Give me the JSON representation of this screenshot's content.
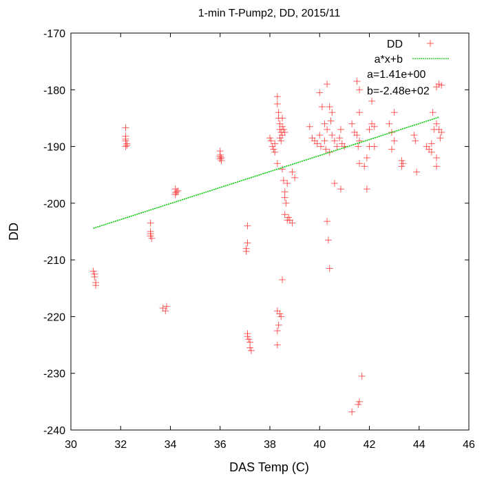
{
  "chart_data": {
    "type": "scatter",
    "title": "1-min T-Pump2, DD, 2015/11",
    "xlabel": "DAS Temp (C)",
    "ylabel": "DD",
    "xlim": [
      30,
      46
    ],
    "ylim": [
      -240,
      -170
    ],
    "xticks": [
      "30",
      "32",
      "34",
      "36",
      "38",
      "40",
      "42",
      "44",
      "46"
    ],
    "yticks": [
      "-170",
      "-180",
      "-190",
      "-200",
      "-210",
      "-220",
      "-230",
      "-240"
    ],
    "grid": false,
    "legend_position": "top-right",
    "colors": {
      "points": "#ff3333",
      "fit": "#00cc00"
    },
    "legend": {
      "series_label": "DD",
      "fit_label": "a*x+b",
      "a_text": "a=1.41e+00",
      "b_text": "b=-2.48e+02"
    },
    "fit": {
      "a": 1.41,
      "b": -248.0,
      "x_range": [
        30.9,
        44.8
      ]
    },
    "series": [
      {
        "name": "DD",
        "marker": "+",
        "points": [
          [
            30.9,
            -212
          ],
          [
            30.95,
            -213
          ],
          [
            31.0,
            -214
          ],
          [
            31.0,
            -214.5
          ],
          [
            30.95,
            -212.5
          ],
          [
            32.2,
            -186.7
          ],
          [
            32.2,
            -188.2
          ],
          [
            32.2,
            -189
          ],
          [
            32.25,
            -189.5
          ],
          [
            32.2,
            -190
          ],
          [
            32.2,
            -188.7
          ],
          [
            32.25,
            -189.8
          ],
          [
            33.2,
            -203.5
          ],
          [
            33.2,
            -205
          ],
          [
            33.2,
            -205.8
          ],
          [
            33.25,
            -206.2
          ],
          [
            33.2,
            -205.4
          ],
          [
            33.7,
            -218.5
          ],
          [
            33.8,
            -219
          ],
          [
            33.85,
            -218.2
          ],
          [
            34.2,
            -197.5
          ],
          [
            34.25,
            -198
          ],
          [
            34.2,
            -198.5
          ],
          [
            34.3,
            -197.8
          ],
          [
            34.2,
            -198.2
          ],
          [
            36.0,
            -190.8
          ],
          [
            36.0,
            -191.8
          ],
          [
            36.0,
            -192.2
          ],
          [
            36.05,
            -192.5
          ],
          [
            36.0,
            -191.5
          ],
          [
            36.05,
            -192
          ],
          [
            37.1,
            -204
          ],
          [
            37.1,
            -207
          ],
          [
            37.05,
            -208
          ],
          [
            37.05,
            -208.5
          ],
          [
            37.1,
            -223
          ],
          [
            37.15,
            -224
          ],
          [
            37.2,
            -224.5
          ],
          [
            37.2,
            -225.5
          ],
          [
            37.25,
            -226
          ],
          [
            37.1,
            -223.5
          ],
          [
            38.0,
            -188.5
          ],
          [
            38.05,
            -189
          ],
          [
            38.1,
            -190
          ],
          [
            38.15,
            -190.5
          ],
          [
            38.2,
            -191
          ],
          [
            38.3,
            -193
          ],
          [
            38.2,
            -189.5
          ],
          [
            38.3,
            -181.2
          ],
          [
            38.3,
            -182.5
          ],
          [
            38.35,
            -184
          ],
          [
            38.35,
            -185
          ],
          [
            38.4,
            -186
          ],
          [
            38.4,
            -187
          ],
          [
            38.45,
            -187.5
          ],
          [
            38.4,
            -188.5
          ],
          [
            38.5,
            -185
          ],
          [
            38.5,
            -186.5
          ],
          [
            38.55,
            -187
          ],
          [
            38.5,
            -188
          ],
          [
            38.6,
            -187.5
          ],
          [
            38.45,
            -189
          ],
          [
            38.3,
            -219
          ],
          [
            38.4,
            -219.5
          ],
          [
            38.45,
            -220
          ],
          [
            38.35,
            -221.5
          ],
          [
            38.3,
            -222.5
          ],
          [
            38.3,
            -225
          ],
          [
            38.5,
            -213.5
          ],
          [
            38.5,
            -194
          ],
          [
            38.55,
            -196
          ],
          [
            38.6,
            -198
          ],
          [
            38.6,
            -199
          ],
          [
            38.65,
            -200
          ],
          [
            38.7,
            -196.5
          ],
          [
            38.6,
            -202
          ],
          [
            38.7,
            -203
          ],
          [
            38.8,
            -203
          ],
          [
            38.9,
            -203.5
          ],
          [
            38.75,
            -202.5
          ],
          [
            38.9,
            -194.5
          ],
          [
            39.0,
            -195.5
          ],
          [
            39.6,
            -186.5
          ],
          [
            39.7,
            -188.5
          ],
          [
            39.8,
            -189
          ],
          [
            39.9,
            -189.5
          ],
          [
            40.0,
            -188
          ],
          [
            40.05,
            -190
          ],
          [
            40.0,
            -180.5
          ],
          [
            40.1,
            -183
          ],
          [
            40.2,
            -186
          ],
          [
            40.3,
            -187
          ],
          [
            40.2,
            -189
          ],
          [
            40.25,
            -190.5
          ],
          [
            40.3,
            -179
          ],
          [
            40.4,
            -183
          ],
          [
            40.5,
            -184
          ],
          [
            40.45,
            -185.5
          ],
          [
            40.5,
            -188
          ],
          [
            40.4,
            -191
          ],
          [
            40.3,
            -203.2
          ],
          [
            40.35,
            -206.5
          ],
          [
            40.4,
            -211.5
          ],
          [
            40.6,
            -189
          ],
          [
            40.7,
            -190
          ],
          [
            40.8,
            -188.5
          ],
          [
            40.9,
            -189.5
          ],
          [
            41.0,
            -190
          ],
          [
            40.85,
            -187
          ],
          [
            40.6,
            -196.5
          ],
          [
            40.85,
            -197.5
          ],
          [
            41.3,
            -186
          ],
          [
            41.4,
            -187.5
          ],
          [
            41.5,
            -188
          ],
          [
            41.6,
            -189
          ],
          [
            41.55,
            -190
          ],
          [
            41.5,
            -178.5
          ],
          [
            41.6,
            -180
          ],
          [
            41.6,
            -184
          ],
          [
            41.6,
            -193
          ],
          [
            41.8,
            -193.5
          ],
          [
            41.9,
            -197.5
          ],
          [
            41.7,
            -230.5
          ],
          [
            41.6,
            -235
          ],
          [
            41.55,
            -235.5
          ],
          [
            41.3,
            -236.8
          ],
          [
            42.0,
            -187
          ],
          [
            42.1,
            -186
          ],
          [
            42.2,
            -186.5
          ],
          [
            42.1,
            -182
          ],
          [
            42.0,
            -190
          ],
          [
            41.9,
            -192
          ],
          [
            42.2,
            -190
          ],
          [
            42.8,
            -186
          ],
          [
            42.9,
            -187.5
          ],
          [
            43.0,
            -189
          ],
          [
            43.0,
            -184
          ],
          [
            42.9,
            -190.5
          ],
          [
            43.3,
            -192.5
          ],
          [
            43.35,
            -193
          ],
          [
            43.3,
            -193.5
          ],
          [
            43.8,
            -188
          ],
          [
            43.85,
            -189
          ],
          [
            43.9,
            -194.5
          ],
          [
            44.3,
            -190
          ],
          [
            44.4,
            -190.5
          ],
          [
            44.5,
            -191
          ],
          [
            44.5,
            -189.5
          ],
          [
            44.6,
            -187
          ],
          [
            44.7,
            -186
          ],
          [
            44.55,
            -184
          ],
          [
            44.7,
            -179.5
          ],
          [
            44.8,
            -179
          ],
          [
            44.9,
            -179.2
          ],
          [
            44.8,
            -187
          ],
          [
            44.85,
            -188.5
          ],
          [
            44.9,
            -187.5
          ],
          [
            44.7,
            -192
          ],
          [
            44.7,
            -193.5
          ]
        ]
      }
    ]
  }
}
